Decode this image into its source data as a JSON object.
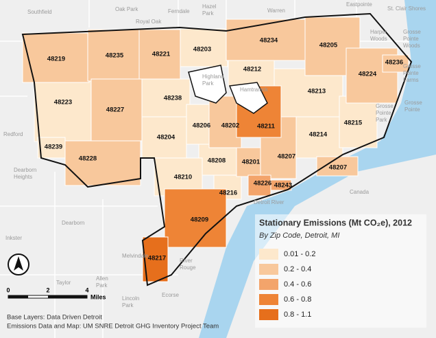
{
  "map": {
    "places": [
      {
        "lines": [
          "Southfield"
        ]
      },
      {
        "lines": [
          "Oak Park"
        ]
      },
      {
        "lines": [
          "Ferndale"
        ]
      },
      {
        "lines": [
          "Hazel",
          "Park"
        ]
      },
      {
        "lines": [
          "Warren"
        ]
      },
      {
        "lines": [
          "Eastpointe"
        ]
      },
      {
        "lines": [
          "St. Clair Shores"
        ]
      },
      {
        "lines": [
          "Royal Oak"
        ]
      },
      {
        "lines": [
          "Harper",
          "Woods"
        ]
      },
      {
        "lines": [
          "Grosse",
          "Pointe",
          "Woods"
        ]
      },
      {
        "lines": [
          "Grosse",
          "Pointe",
          "Farms"
        ]
      },
      {
        "lines": [
          "Grosse",
          "Pointe",
          "Park"
        ]
      },
      {
        "lines": [
          "Grosse",
          "Pointe"
        ]
      },
      {
        "lines": [
          "Highland",
          "Park"
        ]
      },
      {
        "lines": [
          "Hamtramck"
        ]
      },
      {
        "lines": [
          "Redford"
        ]
      },
      {
        "lines": [
          "Dearborn",
          "Heights"
        ]
      },
      {
        "lines": [
          "Dearborn"
        ]
      },
      {
        "lines": [
          "Canada"
        ]
      },
      {
        "lines": [
          "Detroit River"
        ]
      },
      {
        "lines": [
          "Inkster"
        ]
      },
      {
        "lines": [
          "Melvindale"
        ]
      },
      {
        "lines": [
          "River",
          "Rouge"
        ]
      },
      {
        "lines": [
          "Taylor"
        ]
      },
      {
        "lines": [
          "Allen",
          "Park"
        ]
      },
      {
        "lines": [
          "Lincoln",
          "Park"
        ]
      },
      {
        "lines": [
          "Ecorse"
        ]
      }
    ]
  },
  "legend": {
    "title": "Stationary Emissions (Mt CO₂e), 2012",
    "subtitle": "By Zip Code, Detroit, MI",
    "classes": [
      {
        "label": "0.01 - 0.2",
        "color": "#fde8cc",
        "zips": [
          "48203",
          "48212",
          "48213",
          "48223",
          "48238",
          "48204",
          "48206",
          "48208",
          "48210",
          "48216",
          "48214",
          "48215",
          "48239"
        ]
      },
      {
        "label": "0.2 - 0.4",
        "color": "#f8c89c",
        "zips": [
          "48219",
          "48235",
          "48221",
          "48234",
          "48205",
          "48224",
          "48236",
          "48227",
          "48228",
          "48202",
          "48201",
          "48207",
          "48207"
        ]
      },
      {
        "label": "0.4 - 0.6",
        "color": "#f3a46b",
        "zips": [
          "48226",
          "48243"
        ]
      },
      {
        "label": "0.6 - 0.8",
        "color": "#ee8436",
        "zips": [
          "48211",
          "48209"
        ]
      },
      {
        "label": "0.8 - 1.1",
        "color": "#e66f1c",
        "zips": [
          "48217"
        ]
      }
    ]
  },
  "scale": {
    "ticks": [
      "0",
      "2",
      "4"
    ],
    "unit": "Miles"
  },
  "credits": [
    "Base Layers: Data Driven Detroit",
    "Emissions Data and Map: UM SNRE Detroit GHG Inventory Project Team"
  ]
}
